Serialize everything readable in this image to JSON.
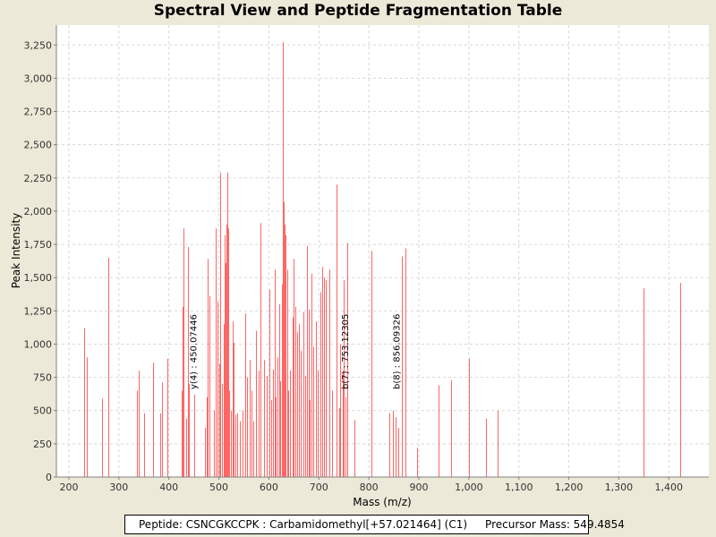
{
  "chart_data": {
    "type": "bar",
    "title": "Spectral View and Peptide Fragmentation Table",
    "xlabel": "Mass (m/z)",
    "ylabel": "Peak Intensity",
    "xlim": [
      175,
      1480
    ],
    "ylim": [
      0,
      3400
    ],
    "x_ticks": [
      200,
      300,
      400,
      500,
      600,
      700,
      800,
      900,
      1000,
      1100,
      1200,
      1300,
      1400
    ],
    "x_tick_labels": [
      "200",
      "300",
      "400",
      "500",
      "600",
      "700",
      "800",
      "900",
      "1,000",
      "1,100",
      "1,200",
      "1,300",
      "1,400"
    ],
    "y_ticks": [
      0,
      250,
      500,
      750,
      1000,
      1250,
      1500,
      1750,
      2000,
      2250,
      2500,
      2750,
      3000,
      3250
    ],
    "y_tick_labels": [
      "0",
      "250",
      "500",
      "750",
      "1,000",
      "1,250",
      "1,500",
      "1,750",
      "2,000",
      "2,250",
      "2,500",
      "2,750",
      "3,000",
      "3,250"
    ],
    "grid": true,
    "peak_color": "#ff6666",
    "peaks": [
      [
        230,
        1120
      ],
      [
        236,
        900
      ],
      [
        266,
        590
      ],
      [
        278,
        1650
      ],
      [
        336,
        650
      ],
      [
        339,
        800
      ],
      [
        350,
        480
      ],
      [
        368,
        860
      ],
      [
        382,
        480
      ],
      [
        387,
        710
      ],
      [
        397,
        890
      ],
      [
        425,
        650
      ],
      [
        428,
        1280
      ],
      [
        430,
        1870
      ],
      [
        435,
        440
      ],
      [
        438,
        1730
      ],
      [
        440,
        700
      ],
      [
        450,
        620
      ],
      [
        472,
        370
      ],
      [
        475,
        600
      ],
      [
        477,
        1640
      ],
      [
        482,
        1360
      ],
      [
        490,
        500
      ],
      [
        494,
        1870
      ],
      [
        497,
        1320
      ],
      [
        500,
        850
      ],
      [
        503,
        2290
      ],
      [
        506,
        700
      ],
      [
        509,
        1150
      ],
      [
        511,
        1820
      ],
      [
        513,
        1610
      ],
      [
        515,
        1900
      ],
      [
        517,
        2290
      ],
      [
        519,
        1870
      ],
      [
        521,
        650
      ],
      [
        524,
        500
      ],
      [
        527,
        1170
      ],
      [
        530,
        1010
      ],
      [
        533,
        470
      ],
      [
        537,
        480
      ],
      [
        542,
        420
      ],
      [
        547,
        500
      ],
      [
        553,
        1230
      ],
      [
        557,
        750
      ],
      [
        561,
        880
      ],
      [
        565,
        650
      ],
      [
        569,
        420
      ],
      [
        575,
        1100
      ],
      [
        580,
        800
      ],
      [
        584,
        1910
      ],
      [
        590,
        880
      ],
      [
        596,
        760
      ],
      [
        601,
        1410
      ],
      [
        604,
        580
      ],
      [
        608,
        810
      ],
      [
        611,
        1560
      ],
      [
        614,
        600
      ],
      [
        617,
        900
      ],
      [
        620,
        1300
      ],
      [
        623,
        720
      ],
      [
        626,
        1450
      ],
      [
        628,
        3270
      ],
      [
        630,
        2070
      ],
      [
        632,
        1900
      ],
      [
        634,
        1820
      ],
      [
        636,
        1560
      ],
      [
        639,
        650
      ],
      [
        643,
        800
      ],
      [
        647,
        1200
      ],
      [
        650,
        1640
      ],
      [
        653,
        1280
      ],
      [
        656,
        1090
      ],
      [
        660,
        1150
      ],
      [
        664,
        950
      ],
      [
        669,
        1240
      ],
      [
        673,
        760
      ],
      [
        677,
        1740
      ],
      [
        679,
        1260
      ],
      [
        682,
        580
      ],
      [
        685,
        1530
      ],
      [
        689,
        980
      ],
      [
        694,
        1170
      ],
      [
        698,
        800
      ],
      [
        703,
        1390
      ],
      [
        707,
        1580
      ],
      [
        710,
        1500
      ],
      [
        713,
        1480
      ],
      [
        721,
        1560
      ],
      [
        727,
        650
      ],
      [
        736,
        2200
      ],
      [
        740,
        520
      ],
      [
        743,
        1000
      ],
      [
        747,
        800
      ],
      [
        750,
        1480
      ],
      [
        753,
        600
      ],
      [
        757,
        1760
      ],
      [
        772,
        430
      ],
      [
        806,
        1700
      ],
      [
        841,
        480
      ],
      [
        848,
        500
      ],
      [
        853,
        450
      ],
      [
        858,
        370
      ],
      [
        866,
        1660
      ],
      [
        873,
        1720
      ],
      [
        896,
        220
      ],
      [
        940,
        690
      ],
      [
        964,
        730
      ],
      [
        1000,
        890
      ],
      [
        1035,
        440
      ],
      [
        1057,
        500
      ],
      [
        1350,
        1420
      ],
      [
        1423,
        1460
      ]
    ],
    "annotations": [
      {
        "x": 450.07446,
        "label": "y(4) : 450.07446"
      },
      {
        "x": 753.12305,
        "label": "b(7) : 753.12305"
      },
      {
        "x": 856.09326,
        "label": "b(8) : 856.09326"
      }
    ]
  },
  "legend": {
    "peptide": "Peptide: CSNCGKCCPK : Carbamidomethyl[+57.021464] (C1)",
    "precursor": "Precursor Mass: 549.4854"
  }
}
